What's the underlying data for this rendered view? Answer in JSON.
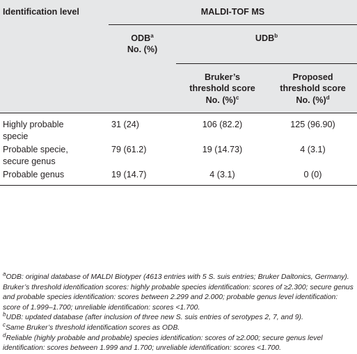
{
  "header": {
    "col0": "Identification level",
    "group_title": "MALDI-TOF MS",
    "odb": "ODB",
    "odb_sup": "a",
    "odb_sub": "No. (%)",
    "udb": "UDB",
    "udb_sup": "b",
    "bruker_line1": "Bruker’s",
    "bruker_line2": "threshold score",
    "bruker_line3": "No. (%)",
    "bruker_sup": "c",
    "proposed_line1": "Proposed",
    "proposed_line2": "threshold score",
    "proposed_line3": "No. (%)",
    "proposed_sup": "d"
  },
  "rows": [
    {
      "level_1": "Highly probable",
      "level_2": "specie",
      "odb": "31 (24)",
      "bruker": "106 (82.2)",
      "proposed": "125 (96.90)"
    },
    {
      "level_1": "Probable specie,",
      "level_2": "secure genus",
      "odb": "79 (61.2)",
      "bruker": "19 (14.73)",
      "proposed": "4 (3.1)"
    },
    {
      "level_1": "Probable genus",
      "level_2": "",
      "odb": "19 (14.7)",
      "bruker": "4 (3.1)",
      "proposed": "0 (0)"
    }
  ],
  "footnotes": {
    "a_mark": "a",
    "a_text": "ODB: original database of MALDI Biotyper (4613 entries with 5 S. suis entries; Bruker Daltonics, Germany). Bruker’s threshold identification scores: highly probable species identification: scores of ≥2.300; secure genus and probable species identification: scores between 2.299 and 2.000; probable genus level identification: score of 1.999–1.700; unreliable identification: scores <1.700.",
    "b_mark": "b",
    "b_text": "UDB: updated database (after inclusion of three new S. suis entries of serotypes 2, 7, and 9).",
    "c_mark": "c",
    "c_text": "Same Bruker’s threshold identification scores as ODB.",
    "d_mark": "d",
    "d_text": "Reliable (highly probable and probable) species identification: scores of ≥2.000; secure genus level identification: scores between 1.999 and 1.700; unreliable identification: scores <1.700."
  }
}
